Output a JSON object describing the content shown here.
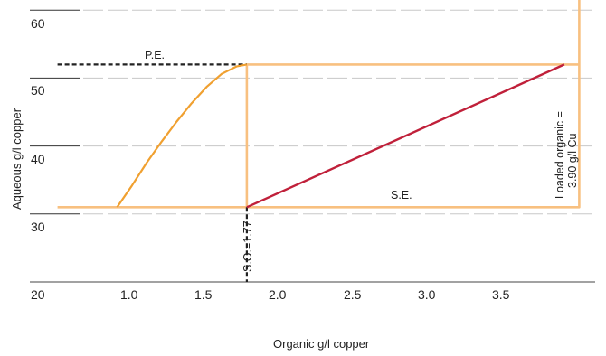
{
  "chart_data": {
    "type": "line",
    "title": "",
    "xlabel": "Organic g/l copper",
    "ylabel": "Aqueous g/l copper",
    "xlim": [
      0.5,
      4.05
    ],
    "ylim": [
      20,
      64
    ],
    "x_ticks": [
      "1.0",
      "1.5",
      "2.0",
      "2.5",
      "3.0",
      "3.5"
    ],
    "y_ticks": [
      "20",
      "30",
      "40",
      "50",
      "60"
    ],
    "grid": "horizontal dashed",
    "series": [
      {
        "style": "equilibrium-curve",
        "color": "#f0a030",
        "points": [
          [
            0.9,
            31
          ],
          [
            1.0,
            34.2
          ],
          [
            1.1,
            37.6
          ],
          [
            1.2,
            40.7
          ],
          [
            1.3,
            43.6
          ],
          [
            1.4,
            46.3
          ],
          [
            1.5,
            48.7
          ],
          [
            1.6,
            50.6
          ],
          [
            1.7,
            51.7
          ],
          [
            1.77,
            52
          ]
        ]
      },
      {
        "style": "operating-line",
        "color": "#c0203a",
        "points": [
          [
            1.77,
            31
          ],
          [
            3.9,
            52
          ]
        ]
      },
      {
        "style": "stage-boundary",
        "color": "#f8c080",
        "points": [
          [
            0.5,
            31
          ],
          [
            4.0,
            31
          ],
          [
            4.0,
            64
          ],
          [
            4.0,
            52
          ],
          [
            1.77,
            52
          ],
          [
            1.77,
            31
          ]
        ]
      },
      {
        "style": "dashed-guide",
        "color": "#222222",
        "points": [
          [
            0.5,
            52
          ],
          [
            1.77,
            52
          ]
        ]
      },
      {
        "style": "dashed-guide",
        "color": "#222222",
        "points": [
          [
            1.77,
            31
          ],
          [
            1.77,
            20
          ]
        ]
      }
    ],
    "annotations": {
      "pe": "P.E.",
      "se": "S.E.",
      "so": "S.O.=1.77",
      "loaded_line1": "Loaded organic =",
      "loaded_line2": "3.90 g/l Cu"
    }
  }
}
